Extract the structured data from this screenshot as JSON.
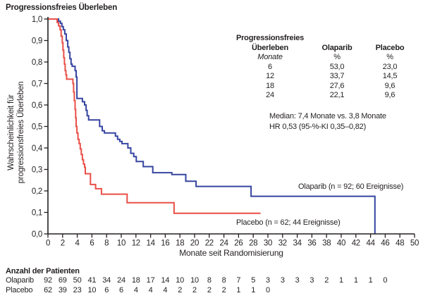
{
  "title": "Progressionsfreies Überleben",
  "chart_data": {
    "type": "line",
    "subtype": "kaplan-meier-step-curves",
    "title": "Progressionsfreies Überleben",
    "xlabel": "Monate seit Randomisierung",
    "ylabel_lines": [
      "Wahrscheinlichkeit für",
      "progressionsfreies Überleben"
    ],
    "xlim": [
      0,
      50
    ],
    "ylim": [
      0.0,
      1.0
    ],
    "grid": false,
    "x_ticks": [
      "0",
      "2",
      "4",
      "6",
      "8",
      "10",
      "12",
      "14",
      "16",
      "18",
      "20",
      "22",
      "24",
      "26",
      "28",
      "30",
      "32",
      "34",
      "36",
      "38",
      "40",
      "42",
      "44",
      "46",
      "48",
      "50"
    ],
    "y_ticks": [
      "1,0",
      "0,9",
      "0,8",
      "0,7",
      "0,6",
      "0,5",
      "0,4",
      "0,3",
      "0,2",
      "0,1",
      "0,0"
    ],
    "series": [
      {
        "name": "Olaparib",
        "color": "#3645a0",
        "curve_label": "Olaparib (n = 92; 60 Ereignisse)",
        "points": [
          [
            1.45,
            0.99
          ],
          [
            1.7,
            0.98
          ],
          [
            1.9,
            0.965
          ],
          [
            2.1,
            0.95
          ],
          [
            2.3,
            0.93
          ],
          [
            2.5,
            0.9
          ],
          [
            2.7,
            0.87
          ],
          [
            2.85,
            0.845
          ],
          [
            3.0,
            0.815
          ],
          [
            3.15,
            0.79
          ],
          [
            3.3,
            0.78
          ],
          [
            3.7,
            0.76
          ],
          [
            3.85,
            0.73
          ],
          [
            3.95,
            0.63
          ],
          [
            4.7,
            0.615
          ],
          [
            5.0,
            0.6
          ],
          [
            5.2,
            0.575
          ],
          [
            5.35,
            0.55
          ],
          [
            5.55,
            0.53
          ],
          [
            7.05,
            0.5
          ],
          [
            7.4,
            0.48
          ],
          [
            7.7,
            0.47
          ],
          [
            9.2,
            0.455
          ],
          [
            9.5,
            0.44
          ],
          [
            9.8,
            0.43
          ],
          [
            10.1,
            0.42
          ],
          [
            10.9,
            0.4
          ],
          [
            11.3,
            0.375
          ],
          [
            11.7,
            0.36
          ],
          [
            12.05,
            0.337
          ],
          [
            13.0,
            0.313
          ],
          [
            14.3,
            0.285
          ],
          [
            16.9,
            0.276
          ],
          [
            18.8,
            0.245
          ],
          [
            20.2,
            0.221
          ],
          [
            27.7,
            0.175
          ],
          [
            44.6,
            0.0
          ]
        ],
        "end_time": null
      },
      {
        "name": "Placebo",
        "color": "#e94f47",
        "curve_label": "Placebo (n = 62; 44 Ereignisse)",
        "points": [
          [
            1.25,
            0.984
          ],
          [
            1.45,
            0.968
          ],
          [
            1.65,
            0.95
          ],
          [
            1.8,
            0.92
          ],
          [
            1.95,
            0.89
          ],
          [
            2.05,
            0.855
          ],
          [
            2.15,
            0.82
          ],
          [
            2.25,
            0.79
          ],
          [
            2.35,
            0.76
          ],
          [
            2.45,
            0.74
          ],
          [
            2.55,
            0.72
          ],
          [
            3.4,
            0.7
          ],
          [
            3.5,
            0.66
          ],
          [
            3.6,
            0.62
          ],
          [
            3.7,
            0.58
          ],
          [
            3.78,
            0.54
          ],
          [
            3.85,
            0.5
          ],
          [
            3.95,
            0.47
          ],
          [
            4.1,
            0.44
          ],
          [
            4.25,
            0.42
          ],
          [
            4.4,
            0.395
          ],
          [
            4.55,
            0.37
          ],
          [
            4.7,
            0.345
          ],
          [
            4.85,
            0.325
          ],
          [
            5.0,
            0.31
          ],
          [
            5.1,
            0.28
          ],
          [
            5.8,
            0.23
          ],
          [
            6.5,
            0.21
          ],
          [
            7.3,
            0.185
          ],
          [
            10.8,
            0.145
          ],
          [
            17.2,
            0.096
          ]
        ],
        "end_time": 29.0
      }
    ],
    "stats_table": {
      "header": {
        "col1_line1": "Progressionsfreies",
        "col1_line2": "Überleben",
        "col2": "Olaparib",
        "col3": "Placebo"
      },
      "subheader": {
        "col1": "Monate",
        "col2": "%",
        "col3": "%"
      },
      "rows": [
        [
          "6",
          "53,0",
          "23,0"
        ],
        [
          "12",
          "33,7",
          "14,5"
        ],
        [
          "18",
          "27,6",
          "9,6"
        ],
        [
          "24",
          "22,1",
          "9,6"
        ]
      ]
    },
    "annotations": {
      "median_line1": "Median: 7,4 Monate vs. 3,8 Monate",
      "median_line2": "HR 0,53 (95-%-KI 0,35–0,82)"
    },
    "risk_table": {
      "title": "Anzahl der Patienten",
      "rows": [
        {
          "name": "Olaparib",
          "values": [
            "92",
            "69",
            "50",
            "41",
            "34",
            "24",
            "18",
            "17",
            "14",
            "10",
            "10",
            "8",
            "8",
            "7",
            "5",
            "3",
            "3",
            "3",
            "3",
            "2",
            "1",
            "1",
            "1",
            "0"
          ]
        },
        {
          "name": "Placebo",
          "values": [
            "62",
            "39",
            "23",
            "10",
            "6",
            "6",
            "4",
            "4",
            "4",
            "2",
            "2",
            "2",
            "2",
            "1",
            "1",
            "0"
          ]
        }
      ]
    },
    "axis_color": "#231f20"
  }
}
